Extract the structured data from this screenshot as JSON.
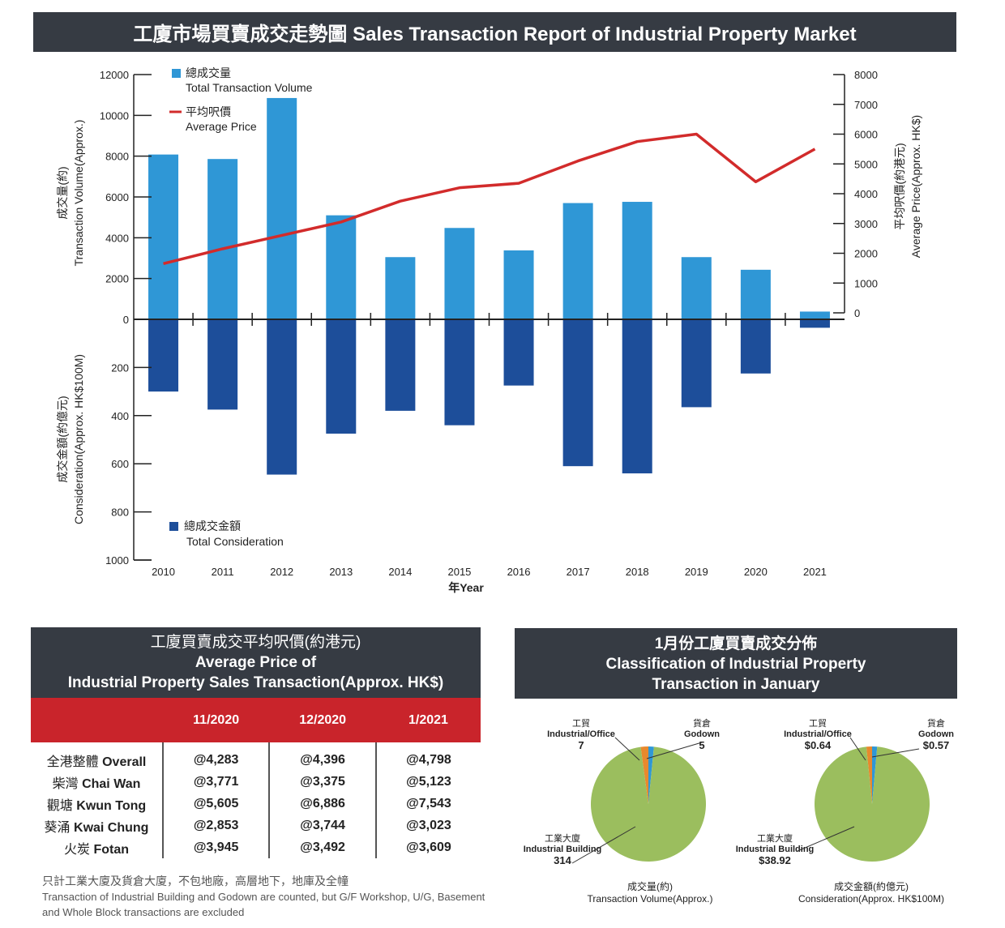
{
  "title": "工廈市場買賣成交走勢圖 Sales Transaction Report of Industrial Property Market",
  "chart_data": {
    "type": "bar",
    "categories": [
      "2010",
      "2011",
      "2012",
      "2013",
      "2014",
      "2015",
      "2016",
      "2017",
      "2018",
      "2019",
      "2020",
      "2021"
    ],
    "series": [
      {
        "name": "總成交量 Total Transaction Volume",
        "type": "bar",
        "axis": "left-top",
        "color": "#2f97d6",
        "values": [
          8080,
          7860,
          10850,
          5100,
          3050,
          4480,
          3380,
          5700,
          5760,
          3050,
          2430,
          380
        ]
      },
      {
        "name": "總成交金額 Total Consideration",
        "type": "bar",
        "axis": "left-bottom",
        "color": "#1d4e9a",
        "values": [
          300,
          375,
          645,
          475,
          380,
          440,
          275,
          610,
          640,
          365,
          225,
          35
        ]
      },
      {
        "name": "平均呎價 Average Price",
        "type": "line",
        "axis": "right",
        "color": "#d22b2b",
        "values": [
          1650,
          2150,
          2600,
          3050,
          3750,
          4200,
          4350,
          5100,
          5750,
          6000,
          4400,
          5500
        ]
      }
    ],
    "left_top_axis": {
      "title_cn": "成交量(約)",
      "title_en": "Transaction Volume(Approx.)",
      "ylim": [
        0,
        12000
      ],
      "ticks": [
        "12000",
        "10000",
        "8000",
        "6000",
        "4000",
        "2000",
        "0"
      ]
    },
    "left_bottom_axis": {
      "title_cn": "成交金額(約億元)",
      "title_en": "Consideration(Approx. HK$100M)",
      "ylim": [
        0,
        1000
      ],
      "ticks": [
        "200",
        "400",
        "600",
        "800",
        "1000"
      ]
    },
    "right_axis": {
      "title_cn": "平均呎價(約港元)",
      "title_en": "Average Price(Approx. HK$)",
      "ylim": [
        0,
        8000
      ],
      "ticks": [
        "8000",
        "7000",
        "6000",
        "5000",
        "4000",
        "3000",
        "2000",
        "1000",
        "0"
      ]
    },
    "xlabel": "年Year",
    "legend": {
      "volume_cn": "總成交量",
      "volume_en": "Total Transaction Volume",
      "price_cn": "平均呎價",
      "price_en": "Average Price",
      "consideration_cn": "總成交金額",
      "consideration_en": "Total Consideration"
    }
  },
  "avg_price_panel": {
    "title_cn": "工廈買賣成交平均呎價(約港元)",
    "title_en1": "Average Price of",
    "title_en2": "Industrial Property Sales Transaction(Approx. HK$)",
    "columns": [
      "11/2020",
      "12/2020",
      "1/2021"
    ],
    "rows": [
      {
        "cn": "全港整體",
        "en": "Overall",
        "values": [
          "@4,283",
          "@4,396",
          "@4,798"
        ]
      },
      {
        "cn": "柴灣",
        "en": "Chai Wan",
        "values": [
          "@3,771",
          "@3,375",
          "@5,123"
        ]
      },
      {
        "cn": "觀塘",
        "en": "Kwun Tong",
        "values": [
          "@5,605",
          "@6,886",
          "@7,543"
        ]
      },
      {
        "cn": "葵涌",
        "en": "Kwai Chung",
        "values": [
          "@2,853",
          "@3,744",
          "@3,023"
        ]
      },
      {
        "cn": "火炭",
        "en": "Fotan",
        "values": [
          "@3,945",
          "@3,492",
          "@3,609"
        ]
      }
    ],
    "note_cn": "只計工業大廈及貨倉大廈，不包地廠，高層地下，地庫及全幢",
    "note_en": "Transaction of Industrial Building and Godown are counted, but G/F Workshop, U/G, Basement and Whole Block transactions are excluded"
  },
  "classification_panel": {
    "title_cn": "1月份工廈買賣成交分佈",
    "title_en1": "Classification of Industrial Property",
    "title_en2": "Transaction in January",
    "pies": [
      {
        "type": "pie",
        "caption_cn": "成交量(約)",
        "caption_en": "Transaction Volume(Approx.)",
        "slices": [
          {
            "cn": "工業大廈",
            "en": "Industrial Building",
            "label": "314",
            "value": 314,
            "color": "#9bbe5e"
          },
          {
            "cn": "工貿",
            "en": "Industrial/Office",
            "label": "7",
            "value": 7,
            "color": "#e8892d"
          },
          {
            "cn": "貨倉",
            "en": "Godown",
            "label": "5",
            "value": 5,
            "color": "#2f97d6"
          }
        ]
      },
      {
        "type": "pie",
        "caption_cn": "成交金額(約億元)",
        "caption_en": "Consideration(Approx. HK$100M)",
        "slices": [
          {
            "cn": "工業大廈",
            "en": "Industrial Building",
            "label": "$38.92",
            "value": 38.92,
            "color": "#9bbe5e"
          },
          {
            "cn": "工貿",
            "en": "Industrial/Office",
            "label": "$0.64",
            "value": 0.64,
            "color": "#e8892d"
          },
          {
            "cn": "貨倉",
            "en": "Godown",
            "label": "$0.57",
            "value": 0.57,
            "color": "#2f97d6"
          }
        ]
      }
    ]
  }
}
